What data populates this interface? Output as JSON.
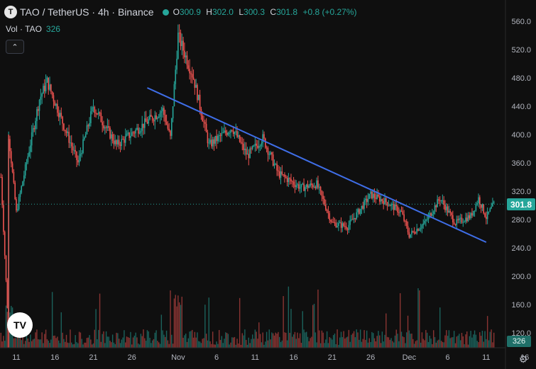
{
  "legend": {
    "logo_letter": "T",
    "symbol": "TAO / TetherUS · 4h · Binance",
    "o_label": "O",
    "o_value": "300.9",
    "h_label": "H",
    "h_value": "302.0",
    "l_label": "L",
    "l_value": "300.3",
    "c_label": "C",
    "c_value": "301.8",
    "change": "+0.8 (+0.27%)"
  },
  "volume_legend": {
    "label": "Vol · TAO",
    "value": "326"
  },
  "collapse_icon": "chevron-up-icon",
  "brand_logo": "TV",
  "current_price_label": "301.8",
  "current_volume_label": "326",
  "settings_icon": "gear-icon",
  "colors": {
    "up": "#26a69a",
    "down": "#ef5350",
    "trendline": "#3f6ee8",
    "background": "#0f0f0f"
  },
  "chart_data": {
    "type": "candlestick",
    "x_tick_labels": [
      "11",
      "16",
      "21",
      "26",
      "Nov",
      "6",
      "11",
      "16",
      "21",
      "26",
      "Dec",
      "6",
      "11",
      "16"
    ],
    "y_tick_labels": [
      "560.0",
      "520.0",
      "480.0",
      "440.0",
      "400.0",
      "360.0",
      "320.0",
      "280.0",
      "240.0",
      "200.0",
      "160.0",
      "120.0"
    ],
    "price_axis": {
      "min": 112,
      "max": 572,
      "scale": "linear",
      "position": "right"
    },
    "grid": false,
    "current_price": 301.8,
    "key_points": [
      {
        "x": "Oct 9",
        "price": 340
      },
      {
        "x": "Oct 10",
        "price": 120
      },
      {
        "x": "Oct 10",
        "price": 400
      },
      {
        "x": "Oct 11",
        "price": 290
      },
      {
        "x": "Oct 14",
        "price": 450
      },
      {
        "x": "Oct 15",
        "price": 475
      },
      {
        "x": "Oct 19",
        "price": 360
      },
      {
        "x": "Oct 21",
        "price": 440
      },
      {
        "x": "Oct 24",
        "price": 385
      },
      {
        "x": "Oct 27",
        "price": 410
      },
      {
        "x": "Oct 30",
        "price": 435
      },
      {
        "x": "Oct 31",
        "price": 395
      },
      {
        "x": "Nov 1",
        "price": 540
      },
      {
        "x": "Nov 3",
        "price": 480
      },
      {
        "x": "Nov 5",
        "price": 385
      },
      {
        "x": "Nov 8",
        "price": 410
      },
      {
        "x": "Nov 10",
        "price": 370
      },
      {
        "x": "Nov 12",
        "price": 395
      },
      {
        "x": "Nov 14",
        "price": 345
      },
      {
        "x": "Nov 17",
        "price": 325
      },
      {
        "x": "Nov 19",
        "price": 330
      },
      {
        "x": "Nov 21",
        "price": 275
      },
      {
        "x": "Nov 23",
        "price": 270
      },
      {
        "x": "Nov 26",
        "price": 315
      },
      {
        "x": "Nov 28",
        "price": 305
      },
      {
        "x": "Nov 30",
        "price": 290
      },
      {
        "x": "Dec 1",
        "price": 258
      },
      {
        "x": "Dec 3",
        "price": 275
      },
      {
        "x": "Dec 5",
        "price": 310
      },
      {
        "x": "Dec 7",
        "price": 275
      },
      {
        "x": "Dec 9",
        "price": 285
      },
      {
        "x": "Dec 10",
        "price": 310
      },
      {
        "x": "Dec 11",
        "price": 283
      },
      {
        "x": "Dec 12",
        "price": 301.8
      }
    ],
    "trendline": {
      "start": {
        "x": "Oct 28",
        "price": 466
      },
      "end": {
        "x": "Dec 11",
        "price": 248
      }
    },
    "volume": {
      "last": 326
    }
  }
}
